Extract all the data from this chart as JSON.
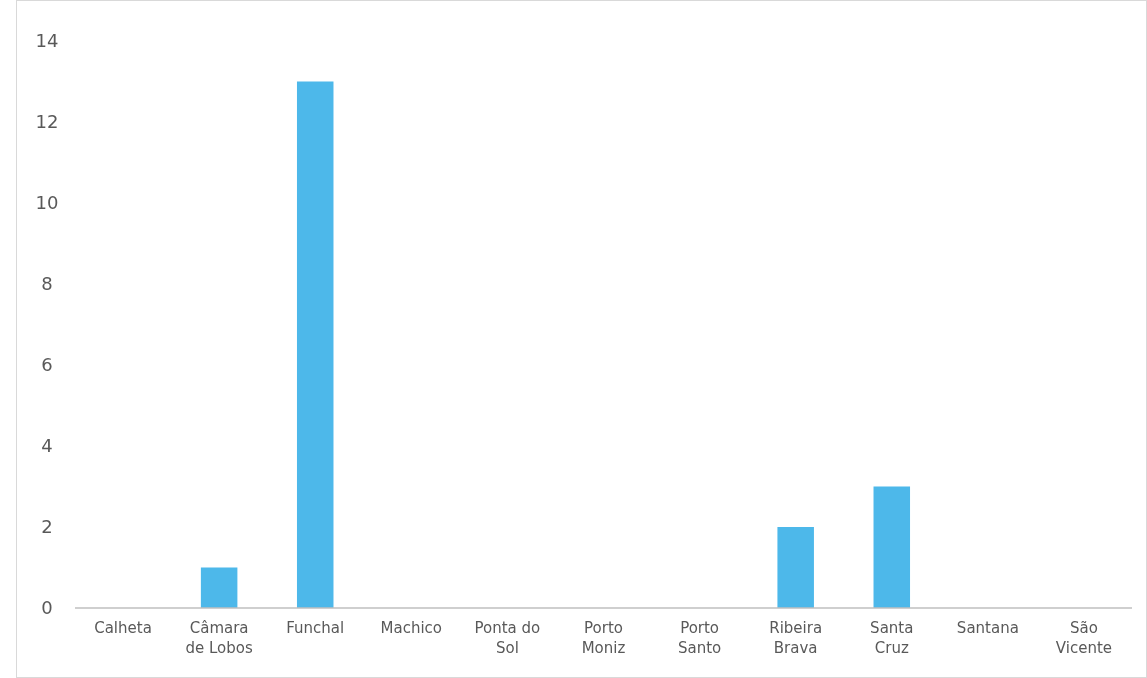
{
  "chart_data": {
    "type": "bar",
    "categories": [
      "Calheta",
      "Câmara de Lobos",
      "Funchal",
      "Machico",
      "Ponta do Sol",
      "Porto Moniz",
      "Porto Santo",
      "Ribeira Brava",
      "Santa Cruz",
      "Santana",
      "São Vicente"
    ],
    "values": [
      0,
      1,
      13,
      0,
      0,
      0,
      0,
      2,
      3,
      0,
      0
    ],
    "color": "#4db8ea",
    "ylim": [
      0,
      14
    ],
    "yticks": [
      0,
      2,
      4,
      6,
      8,
      10,
      12,
      14
    ],
    "grid": false
  }
}
